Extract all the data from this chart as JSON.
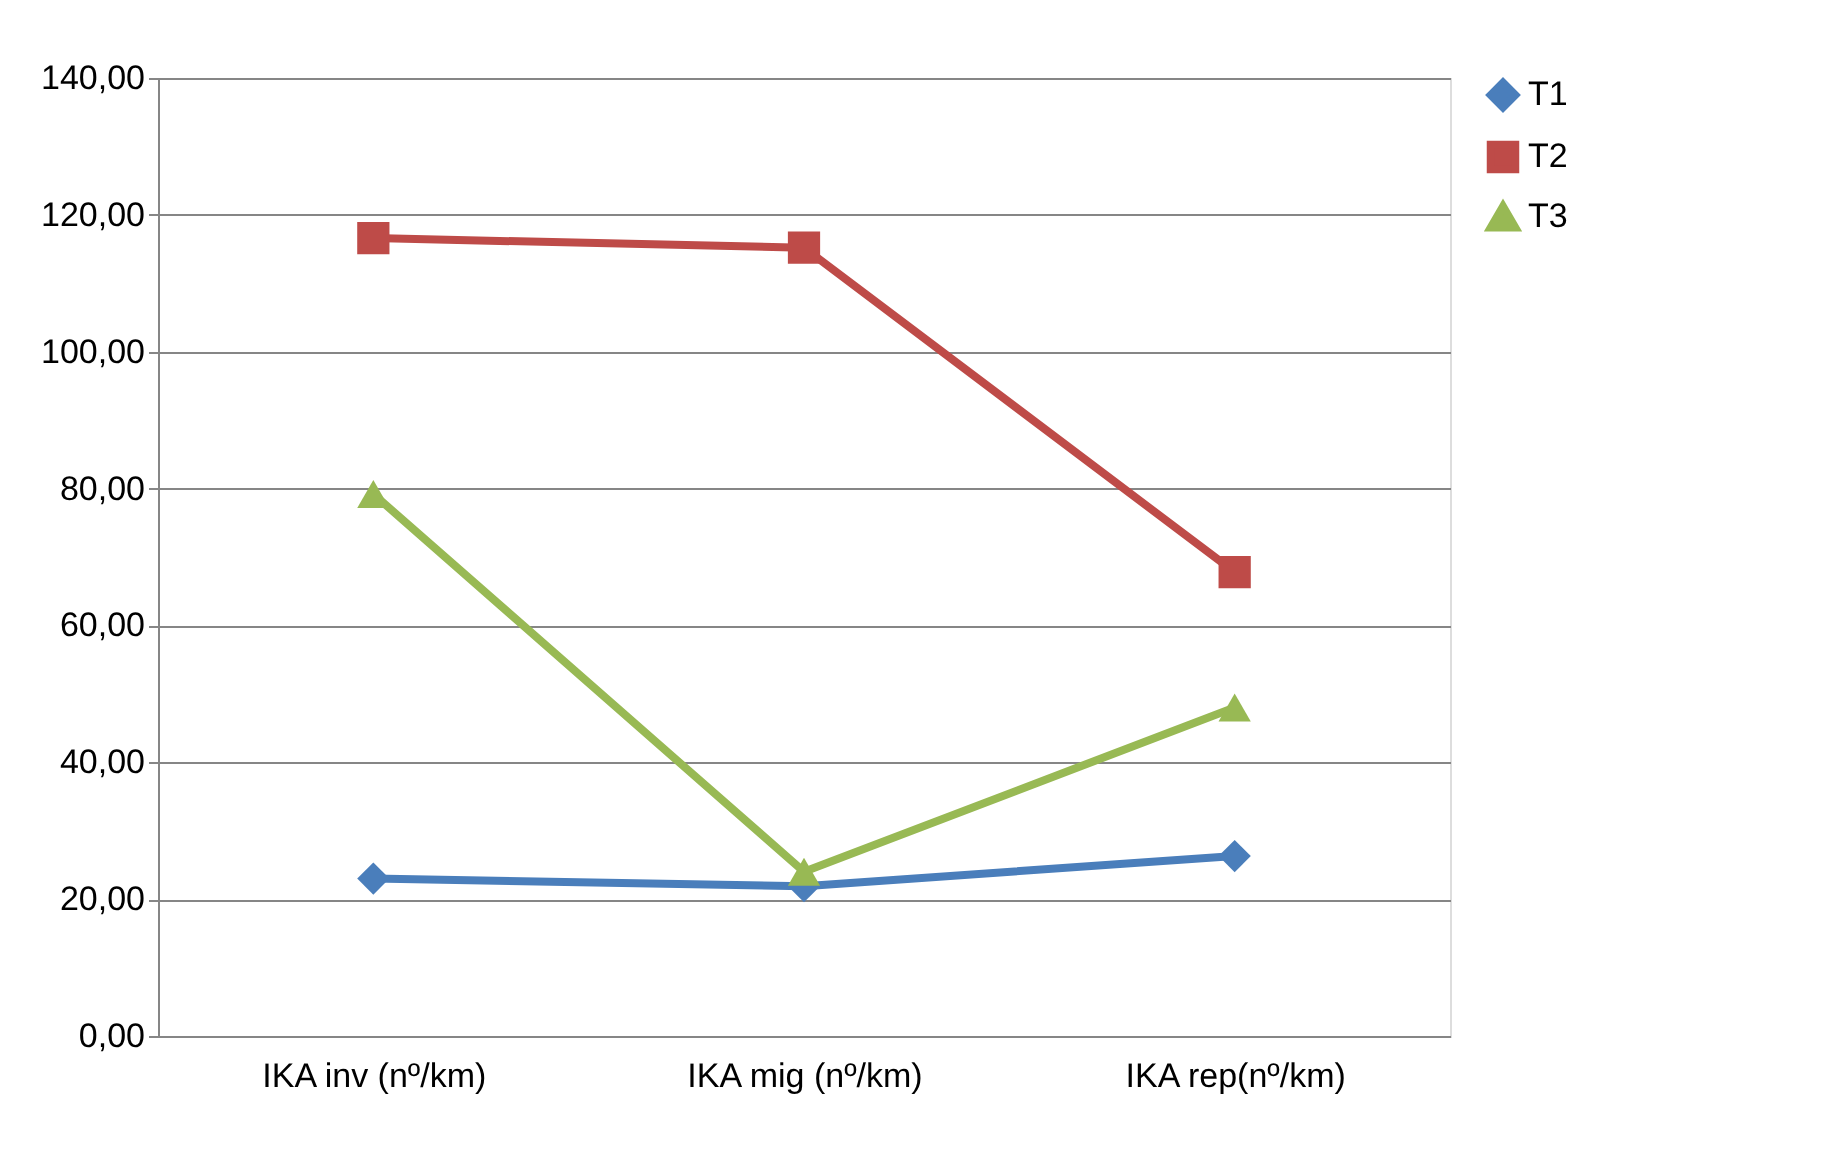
{
  "chart_data": {
    "type": "line",
    "categories": [
      "IKA inv (nº/km)",
      "IKA mig  (nº/km)",
      "IKA rep(nº/km)"
    ],
    "series": [
      {
        "name": "T1",
        "color": "#4a7ebb",
        "marker": "diamond",
        "values": [
          23.0,
          21.9,
          26.3
        ]
      },
      {
        "name": "T2",
        "color": "#be4b48",
        "marker": "square",
        "values": [
          116.6,
          115.2,
          67.8
        ]
      },
      {
        "name": "T3",
        "color": "#98b954",
        "marker": "triangle",
        "values": [
          79.2,
          24.0,
          48.0
        ]
      }
    ],
    "ylim": [
      0,
      140
    ],
    "yticks": [
      {
        "value": 0,
        "label": "0,00"
      },
      {
        "value": 20,
        "label": "20,00"
      },
      {
        "value": 40,
        "label": "40,00"
      },
      {
        "value": 60,
        "label": "60,00"
      },
      {
        "value": 80,
        "label": "80,00"
      },
      {
        "value": 100,
        "label": "100,00"
      },
      {
        "value": 120,
        "label": "120,00"
      },
      {
        "value": 140,
        "label": "140,00"
      }
    ],
    "grid": "y",
    "legend": "right",
    "line_style": "solid"
  }
}
